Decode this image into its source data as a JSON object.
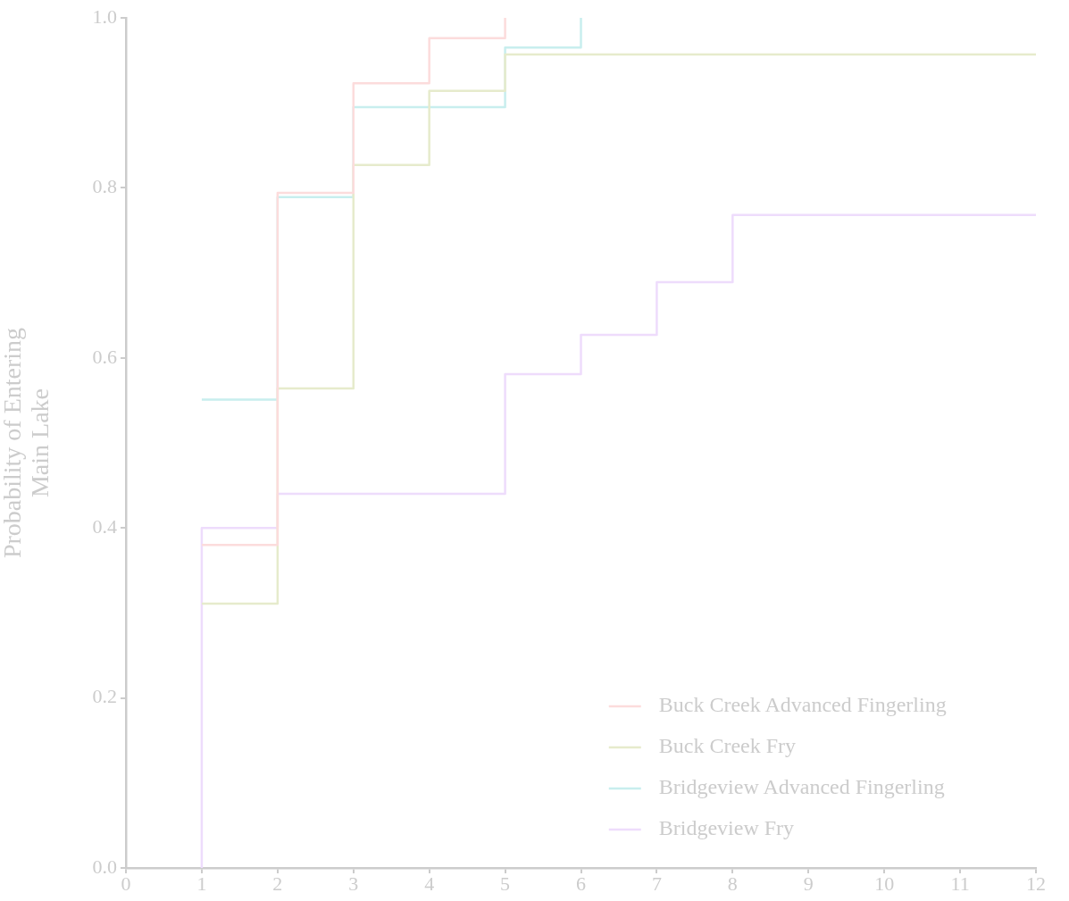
{
  "chart_data": {
    "type": "step",
    "ylabel": "Probability of Entering\nMain Lake",
    "series": [
      {
        "name": "Buck Creek Advanced Fingerling",
        "color": "#fcdcdc",
        "x": [
          1,
          2,
          3,
          4,
          5
        ],
        "values": [
          0.38,
          0.794,
          0.923,
          0.976,
          1.0
        ]
      },
      {
        "name": "Buck Creek Fry",
        "color": "#e6ebcc",
        "x": [
          1,
          2,
          3,
          4,
          5,
          12
        ],
        "values": [
          0.311,
          0.564,
          0.827,
          0.914,
          0.957,
          0.957
        ]
      },
      {
        "name": "Bridgeview Advanced Fingerling",
        "color": "#c8eeee",
        "x": [
          1,
          2,
          3,
          5,
          6
        ],
        "values": [
          0.551,
          0.789,
          0.895,
          0.965,
          1.0
        ]
      },
      {
        "name": "Bridgeview Fry",
        "color": "#eedcfc",
        "x": [
          1,
          1,
          2,
          5,
          6,
          7,
          8,
          12
        ],
        "values": [
          0,
          0.4,
          0.44,
          0.581,
          0.627,
          0.689,
          0.768,
          0.768
        ]
      }
    ],
    "xlim": [
      0,
      12
    ],
    "xticks": [
      0,
      1,
      2,
      3,
      4,
      5,
      6,
      7,
      8,
      9,
      10,
      11,
      12
    ],
    "ylim": [
      0,
      1
    ],
    "yticks": [
      {
        "value": 0,
        "label": "0.0"
      },
      0.2,
      0.4,
      0.6,
      0.8,
      {
        "value": 1,
        "label": "1.0"
      }
    ],
    "grid": false,
    "legend": "bottom right",
    "marker": "none",
    "line_style": "solid"
  }
}
